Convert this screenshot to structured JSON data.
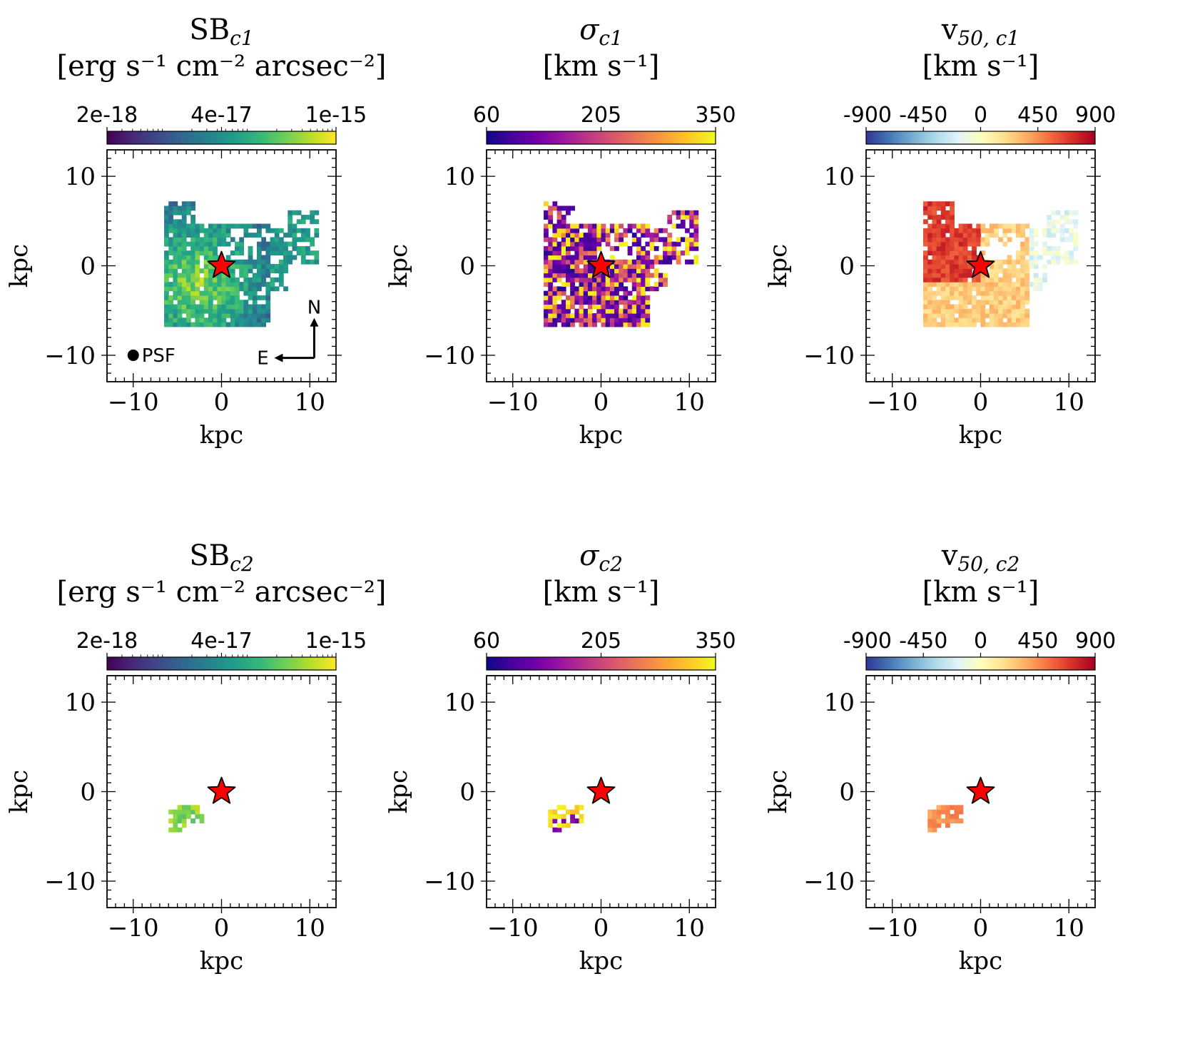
{
  "figure": {
    "rows": 2,
    "cols": 3
  },
  "chart_data": [
    {
      "type": "heatmap",
      "id": "sb_c1",
      "title_main": "SB",
      "title_sub": "c1",
      "unit_line": "[erg s⁻¹ cm⁻² arcsec⁻²]",
      "colormap": "viridis",
      "colorbar_scale": "log",
      "colorbar_ticks": [
        "2e-18",
        "4e-17",
        "1e-15"
      ],
      "colorbar_range": [
        2e-18,
        1e-15
      ],
      "xlabel": "kpc",
      "ylabel": "kpc",
      "xticks": [
        "−10",
        "0",
        "10"
      ],
      "yticks": [
        "10",
        "0",
        "−10"
      ],
      "xlim": [
        -12,
        12
      ],
      "ylim": [
        -12,
        12
      ],
      "marker": {
        "symbol": "star",
        "x": 0,
        "y": 0,
        "color": "#ff0000"
      },
      "region": "extended",
      "extent_kpc": [
        -6.5,
        11,
        -6.8,
        7
      ],
      "psf_label": "PSF",
      "compass": {
        "north": "N",
        "east": "E"
      }
    },
    {
      "type": "heatmap",
      "id": "sigma_c1",
      "title_main": "σ",
      "title_sub": "c1",
      "unit_line": "[km s⁻¹]",
      "colormap": "plasma",
      "colorbar_scale": "linear",
      "colorbar_ticks": [
        "60",
        "205",
        "350"
      ],
      "colorbar_range": [
        60,
        350
      ],
      "xlabel": "kpc",
      "ylabel": "kpc",
      "xticks": [
        "−10",
        "0",
        "10"
      ],
      "yticks": [
        "10",
        "0",
        "−10"
      ],
      "xlim": [
        -12,
        12
      ],
      "ylim": [
        -12,
        12
      ],
      "marker": {
        "symbol": "star",
        "x": 0,
        "y": 0,
        "color": "#ff0000"
      },
      "region": "extended",
      "extent_kpc": [
        -6.5,
        11,
        -6.8,
        7
      ]
    },
    {
      "type": "heatmap",
      "id": "v50_c1",
      "title_main": "v",
      "title_sub": "50, c1",
      "unit_line": "[km s⁻¹]",
      "colormap": "RdYlBu_r",
      "colorbar_scale": "linear",
      "colorbar_ticks": [
        "-900",
        "-450",
        "0",
        "450",
        "900"
      ],
      "colorbar_range": [
        -900,
        900
      ],
      "xlabel": "kpc",
      "ylabel": "kpc",
      "xticks": [
        "−10",
        "0",
        "10"
      ],
      "yticks": [
        "10",
        "0",
        "−10"
      ],
      "xlim": [
        -12,
        12
      ],
      "ylim": [
        -12,
        12
      ],
      "marker": {
        "symbol": "star",
        "x": 0,
        "y": 0,
        "color": "#ff0000"
      },
      "region": "extended",
      "extent_kpc": [
        -6.5,
        11,
        -6.8,
        7
      ]
    },
    {
      "type": "heatmap",
      "id": "sb_c2",
      "title_main": "SB",
      "title_sub": "c2",
      "unit_line": "[erg s⁻¹ cm⁻² arcsec⁻²]",
      "colormap": "viridis",
      "colorbar_scale": "log",
      "colorbar_ticks": [
        "2e-18",
        "4e-17",
        "1e-15"
      ],
      "colorbar_range": [
        2e-18,
        1e-15
      ],
      "xlabel": "kpc",
      "ylabel": "kpc",
      "xticks": [
        "−10",
        "0",
        "10"
      ],
      "yticks": [
        "10",
        "0",
        "−10"
      ],
      "xlim": [
        -12,
        12
      ],
      "ylim": [
        -12,
        12
      ],
      "marker": {
        "symbol": "star",
        "x": 0,
        "y": 0,
        "color": "#ff0000"
      },
      "region": "compact",
      "extent_kpc": [
        -6,
        -2.5,
        -4.5,
        -1.5
      ]
    },
    {
      "type": "heatmap",
      "id": "sigma_c2",
      "title_main": "σ",
      "title_sub": "c2",
      "unit_line": "[km s⁻¹]",
      "colormap": "plasma",
      "colorbar_scale": "linear",
      "colorbar_ticks": [
        "60",
        "205",
        "350"
      ],
      "colorbar_range": [
        60,
        350
      ],
      "xlabel": "kpc",
      "ylabel": "kpc",
      "xticks": [
        "−10",
        "0",
        "10"
      ],
      "yticks": [
        "10",
        "0",
        "−10"
      ],
      "xlim": [
        -12,
        12
      ],
      "ylim": [
        -12,
        12
      ],
      "marker": {
        "symbol": "star",
        "x": 0,
        "y": 0,
        "color": "#ff0000"
      },
      "region": "compact",
      "extent_kpc": [
        -6,
        -2.5,
        -4.5,
        -1.5
      ]
    },
    {
      "type": "heatmap",
      "id": "v50_c2",
      "title_main": "v",
      "title_sub": "50, c2",
      "unit_line": "[km s⁻¹]",
      "colormap": "RdYlBu_r",
      "colorbar_scale": "linear",
      "colorbar_ticks": [
        "-900",
        "-450",
        "0",
        "450",
        "900"
      ],
      "colorbar_range": [
        -900,
        900
      ],
      "xlabel": "kpc",
      "ylabel": "kpc",
      "xticks": [
        "−10",
        "0",
        "10"
      ],
      "yticks": [
        "10",
        "0",
        "−10"
      ],
      "xlim": [
        -12,
        12
      ],
      "ylim": [
        -12,
        12
      ],
      "marker": {
        "symbol": "star",
        "x": 0,
        "y": 0,
        "color": "#ff0000"
      },
      "region": "compact",
      "extent_kpc": [
        -6,
        -2.5,
        -4.5,
        -1.5
      ]
    }
  ],
  "colormaps": {
    "viridis": [
      "#440154",
      "#482878",
      "#3e4989",
      "#31688e",
      "#26828e",
      "#1f9e89",
      "#35b779",
      "#6ece58",
      "#b5de2b",
      "#fde725"
    ],
    "plasma": [
      "#0d0887",
      "#46039f",
      "#7201a8",
      "#9c179e",
      "#bd3786",
      "#d8576b",
      "#ed7953",
      "#fb9f3a",
      "#fdca26",
      "#f0f921"
    ],
    "RdYlBu_r": [
      "#313695",
      "#4575b4",
      "#74add1",
      "#abd9e9",
      "#e0f3f8",
      "#ffffbf",
      "#fee090",
      "#fdae61",
      "#f46d43",
      "#d73027",
      "#a50026"
    ]
  }
}
